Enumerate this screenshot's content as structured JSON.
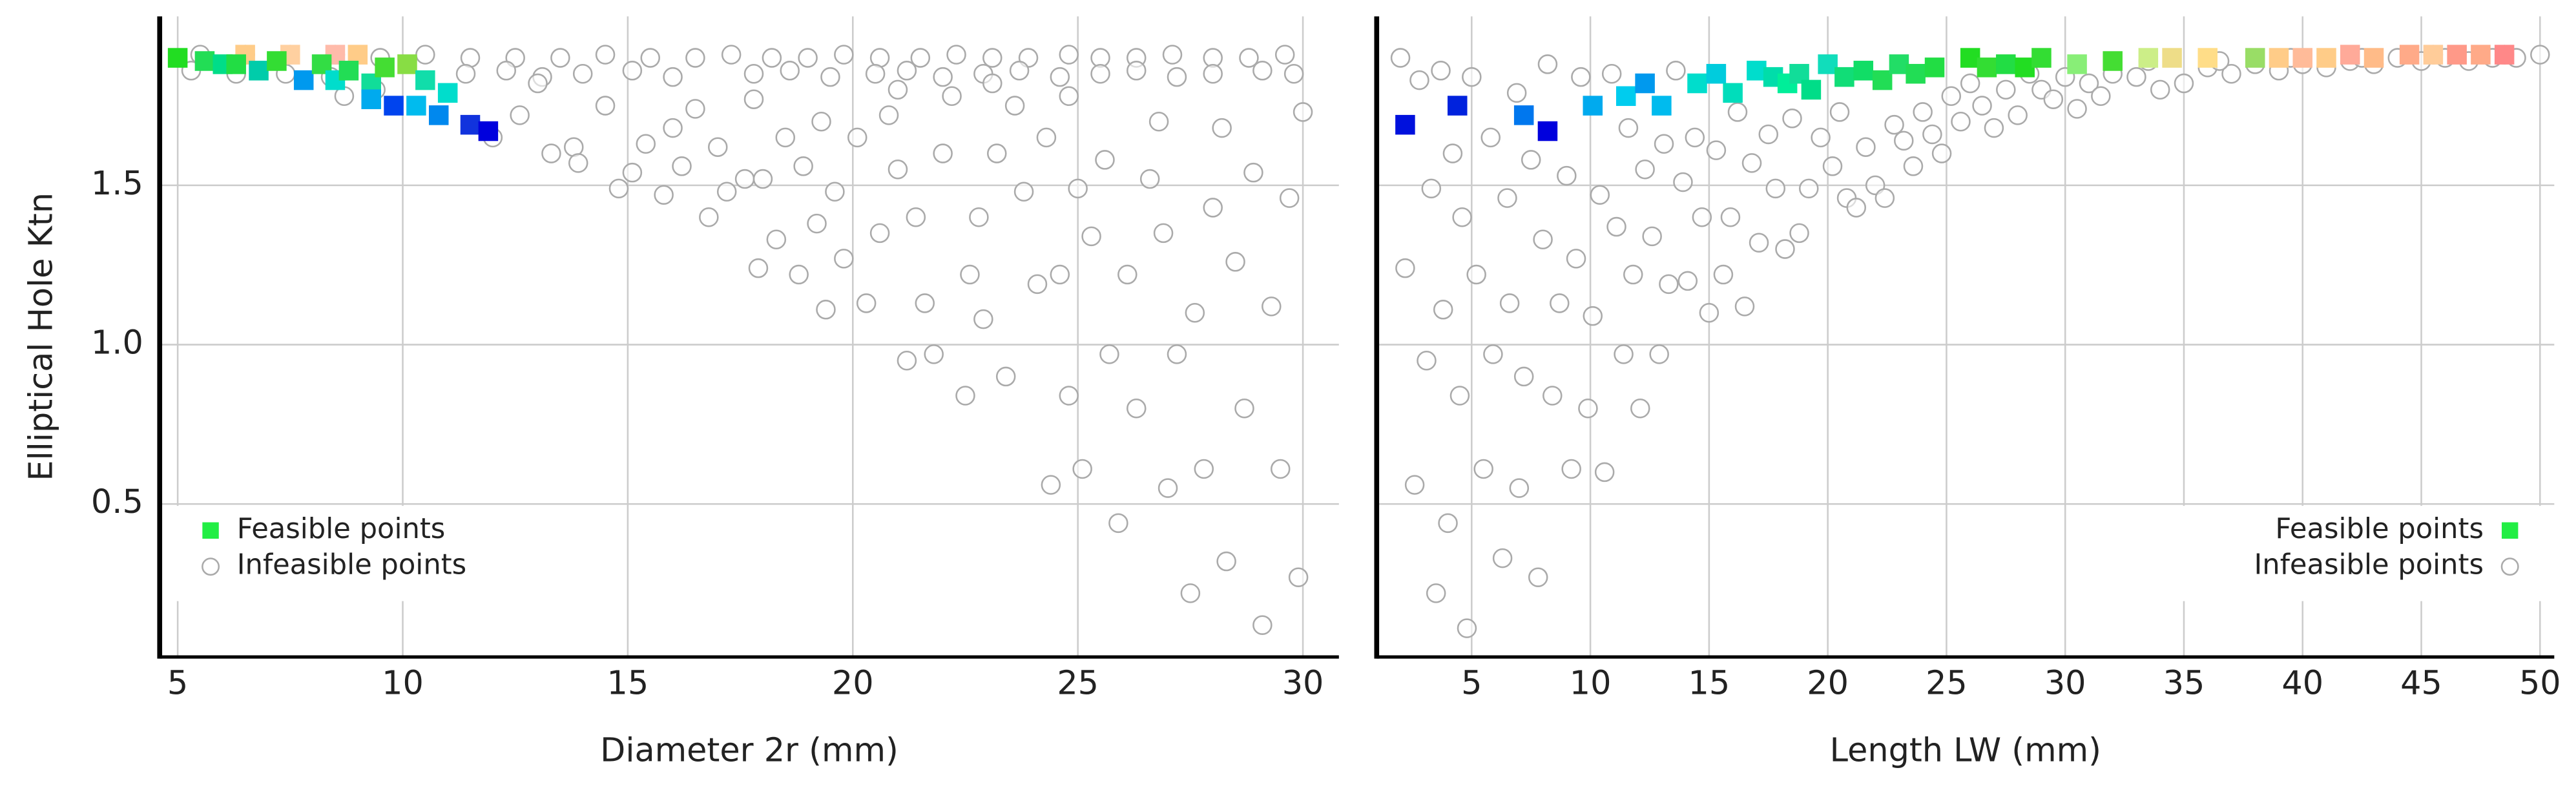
{
  "chart_data": [
    {
      "type": "scatter",
      "xlabel": "Diameter 2r (mm)",
      "ylabel": "Elliptical Hole Ktn",
      "xlim": [
        4.6,
        30.8
      ],
      "ylim": [
        0.02,
        2.03
      ],
      "xticks": [
        5,
        10,
        15,
        20,
        25,
        30
      ],
      "yticks": [
        0.5,
        {
          "value": 1,
          "label": "1.0"
        },
        1.5
      ],
      "grid": true,
      "legend": "lower left",
      "series": [
        {
          "name": "Feasible points",
          "color": "#22ee44",
          "marker": "square",
          "x": [
            6.5,
            7.5,
            8.5,
            9.0,
            5.0,
            5.6,
            6.0,
            6.3,
            6.8,
            7.2,
            7.8,
            8.2,
            8.5,
            8.8,
            9.3,
            9.6,
            9.3,
            9.8,
            10.1,
            10.3,
            10.5,
            10.8,
            11.0,
            11.5,
            11.9
          ],
          "values": [
            1.91,
            1.91,
            1.91,
            1.91,
            1.9,
            1.89,
            1.88,
            1.88,
            1.86,
            1.89,
            1.83,
            1.88,
            1.83,
            1.86,
            1.82,
            1.87,
            1.77,
            1.75,
            1.88,
            1.75,
            1.83,
            1.72,
            1.79,
            1.69,
            1.67
          ],
          "colors": [
            "#ffcc88",
            "#ffd0a0",
            "#ffbbaa",
            "#ffcc88",
            "#22dd22",
            "#22dd55",
            "#00dd88",
            "#22dd44",
            "#00ccaa",
            "#33dd33",
            "#0099ee",
            "#33dd44",
            "#00ddcc",
            "#22dd55",
            "#11dd99",
            "#44dd33",
            "#00aaee",
            "#0044ee",
            "#88dd44",
            "#00bbee",
            "#11ddaa",
            "#0088ee",
            "#00ddcc",
            "#1133dd",
            "#0000dd"
          ]
        },
        {
          "name": "Infeasible points",
          "color": "#aaaaaa",
          "marker": "circle",
          "x": [
            5.5,
            6.5,
            7.5,
            8.5,
            9.5,
            10.5,
            11.5,
            12.5,
            13.5,
            14.5,
            15.5,
            16.5,
            17.3,
            18.2,
            19,
            19.8,
            20.6,
            21.5,
            22.3,
            23.1,
            23.9,
            24.8,
            25.5,
            26.3,
            27.1,
            28,
            28.8,
            29.6,
            5.3,
            6.3,
            7.4,
            8.4,
            11.4,
            12.3,
            13.1,
            14.0,
            15.1,
            16.0,
            17.8,
            18.6,
            19.5,
            20.5,
            21.2,
            22.0,
            22.9,
            23.7,
            24.6,
            25.5,
            26.3,
            27.2,
            28.0,
            29.1,
            29.8,
            8.7,
            9.4,
            12.0,
            12.6,
            13.0,
            13.3,
            13.8,
            13.9,
            14.5,
            14.8,
            15.1,
            15.4,
            15.8,
            16.0,
            16.2,
            16.5,
            16.8,
            17.0,
            17.2,
            17.6,
            17.8,
            17.9,
            18.0,
            18.3,
            18.5,
            18.8,
            18.9,
            19.2,
            19.3,
            19.4,
            19.6,
            19.8,
            20.1,
            20.3,
            20.6,
            20.8,
            21.0,
            21.2,
            21.4,
            21.6,
            21.8,
            22.0,
            22.2,
            22.5,
            22.6,
            22.8,
            22.9,
            23.2,
            23.4,
            23.6,
            23.8,
            24.1,
            24.3,
            24.4,
            24.6,
            24.8,
            25.0,
            25.1,
            25.3,
            25.6,
            25.7,
            25.9,
            26.1,
            26.3,
            26.6,
            26.9,
            27.0,
            27.2,
            27.5,
            27.6,
            27.8,
            28.0,
            28.3,
            28.5,
            28.7,
            28.9,
            29.1,
            29.3,
            29.5,
            29.7,
            29.9,
            30.0,
            28.2,
            26.8,
            24.8,
            23.1,
            21.0
          ],
          "values": [
            1.91,
            1.91,
            1.91,
            1.91,
            1.9,
            1.91,
            1.9,
            1.9,
            1.9,
            1.91,
            1.9,
            1.9,
            1.91,
            1.9,
            1.9,
            1.91,
            1.9,
            1.9,
            1.91,
            1.9,
            1.9,
            1.91,
            1.9,
            1.9,
            1.91,
            1.9,
            1.9,
            1.91,
            1.86,
            1.85,
            1.85,
            1.84,
            1.85,
            1.86,
            1.84,
            1.85,
            1.86,
            1.84,
            1.85,
            1.86,
            1.84,
            1.85,
            1.86,
            1.84,
            1.85,
            1.86,
            1.84,
            1.85,
            1.86,
            1.84,
            1.85,
            1.86,
            1.85,
            1.78,
            1.8,
            1.65,
            1.72,
            1.82,
            1.6,
            1.62,
            1.57,
            1.75,
            1.49,
            1.54,
            1.63,
            1.47,
            1.68,
            1.56,
            1.74,
            1.4,
            1.62,
            1.48,
            1.52,
            1.77,
            1.24,
            1.52,
            1.33,
            1.65,
            1.22,
            1.56,
            1.38,
            1.7,
            1.11,
            1.48,
            1.27,
            1.65,
            1.13,
            1.35,
            1.72,
            1.55,
            0.95,
            1.4,
            1.13,
            0.97,
            1.6,
            1.78,
            0.84,
            1.22,
            1.4,
            1.08,
            1.6,
            0.9,
            1.75,
            1.48,
            1.19,
            1.65,
            0.56,
            1.22,
            0.84,
            1.49,
            0.61,
            1.34,
            1.58,
            0.97,
            0.44,
            1.22,
            0.8,
            1.52,
            1.35,
            0.55,
            0.97,
            0.22,
            1.1,
            0.61,
            1.43,
            0.32,
            1.26,
            0.8,
            1.54,
            0.12,
            1.12,
            0.61,
            1.46,
            0.27,
            1.73,
            1.68,
            1.7,
            1.78,
            1.82,
            1.8
          ]
        }
      ]
    },
    {
      "type": "scatter",
      "xlabel": "Length LW (mm)",
      "xlim": [
        1,
        50.6
      ],
      "ylim": [
        0.02,
        2.03
      ],
      "xticks": [
        5,
        10,
        15,
        20,
        25,
        30,
        35,
        40,
        45,
        50
      ],
      "yticks": [
        0.5,
        1,
        1.5
      ],
      "grid": true,
      "legend": "lower right",
      "series": [
        {
          "name": "Feasible points",
          "color": "#22ee44",
          "marker": "square",
          "x": [
            2.2,
            4.4,
            7.2,
            8.2,
            10.1,
            11.5,
            12.3,
            13.0,
            14.5,
            15.3,
            16.0,
            17.0,
            17.7,
            18.3,
            18.8,
            19.3,
            20.0,
            20.7,
            21.5,
            22.3,
            23.0,
            23.7,
            24.5,
            26.0,
            26.7,
            27.5,
            28.3,
            29.0,
            30.5,
            32.0,
            33.5,
            34.5,
            36,
            38,
            39,
            40,
            41,
            42,
            43,
            44.5,
            45.5,
            46.5,
            47.5,
            48.5
          ],
          "values": [
            1.69,
            1.75,
            1.72,
            1.67,
            1.75,
            1.78,
            1.82,
            1.75,
            1.82,
            1.85,
            1.79,
            1.86,
            1.84,
            1.82,
            1.85,
            1.8,
            1.88,
            1.84,
            1.86,
            1.83,
            1.88,
            1.85,
            1.87,
            1.9,
            1.87,
            1.88,
            1.87,
            1.9,
            1.88,
            1.89,
            1.9,
            1.9,
            1.9,
            1.9,
            1.9,
            1.9,
            1.9,
            1.91,
            1.9,
            1.91,
            1.91,
            1.91,
            1.91,
            1.91
          ],
          "colors": [
            "#0011dd",
            "#0022dd",
            "#0077ee",
            "#0000dd",
            "#00aaee",
            "#00ccee",
            "#0099ee",
            "#00bbee",
            "#00ddcc",
            "#00ccdd",
            "#00ddbb",
            "#00ddcc",
            "#00ddaa",
            "#00ee99",
            "#11dd99",
            "#00dd88",
            "#11ddbb",
            "#11dd77",
            "#11dd66",
            "#22dd55",
            "#22dd66",
            "#22dd55",
            "#22dd44",
            "#22dd22",
            "#33dd33",
            "#22dd44",
            "#22dd22",
            "#33dd33",
            "#88ee77",
            "#44dd33",
            "#ccee88",
            "#eedd88",
            "#ffdd88",
            "#99dd66",
            "#ffcc88",
            "#ffbb99",
            "#ffcc88",
            "#ffaa99",
            "#ffbb88",
            "#ffaa88",
            "#ffcc99",
            "#ff9988",
            "#ffaa88",
            "#ff8888"
          ]
        },
        {
          "name": "Infeasible points",
          "color": "#aaaaaa",
          "marker": "circle",
          "x": [
            2.0,
            2.2,
            2.6,
            2.8,
            3.1,
            3.3,
            3.5,
            3.7,
            3.8,
            4.0,
            4.2,
            4.6,
            4.5,
            4.8,
            5.0,
            5.2,
            5.5,
            5.8,
            5.9,
            6.3,
            6.5,
            6.6,
            6.9,
            7.0,
            7.2,
            7.5,
            7.8,
            8.0,
            8.2,
            8.4,
            8.7,
            9.0,
            9.2,
            9.4,
            9.6,
            9.9,
            10.1,
            10.4,
            10.6,
            10.9,
            11.1,
            11.4,
            11.6,
            11.8,
            12.1,
            12.3,
            12.6,
            12.9,
            13.1,
            13.3,
            13.6,
            13.9,
            14.1,
            14.4,
            14.7,
            15.0,
            15.3,
            15.6,
            15.9,
            16.2,
            16.5,
            16.8,
            17.1,
            17.5,
            17.8,
            18.2,
            18.5,
            18.8,
            19.2,
            19.7,
            20.2,
            20.5,
            20.8,
            21.2,
            21.6,
            22.0,
            22.4,
            22.8,
            23.2,
            23.6,
            24.0,
            24.4,
            24.8,
            25.2,
            25.6,
            26.0,
            26.5,
            27.0,
            27.5,
            28.0,
            28.5,
            29.0,
            29.5,
            30.0,
            30.5,
            31.0,
            31.5,
            32.0,
            33,
            34,
            35,
            36,
            37,
            38,
            39,
            40,
            41,
            42,
            43,
            44,
            45,
            46,
            47,
            48,
            49,
            50,
            33.5,
            36.5,
            39.5,
            42.5,
            45.5,
            48.5
          ],
          "values": [
            1.9,
            1.24,
            0.56,
            1.83,
            0.95,
            1.49,
            0.22,
            1.86,
            1.11,
            0.44,
            1.6,
            1.4,
            0.84,
            0.11,
            1.84,
            1.22,
            0.61,
            1.65,
            0.97,
            0.33,
            1.46,
            1.13,
            1.79,
            0.55,
            0.9,
            1.58,
            0.27,
            1.33,
            1.88,
            0.84,
            1.13,
            1.53,
            0.61,
            1.27,
            1.84,
            0.8,
            1.09,
            1.47,
            0.6,
            1.85,
            1.37,
            0.97,
            1.68,
            1.22,
            0.8,
            1.55,
            1.34,
            0.97,
            1.63,
            1.19,
            1.86,
            1.51,
            1.2,
            1.65,
            1.4,
            1.1,
            1.61,
            1.22,
            1.4,
            1.73,
            1.12,
            1.57,
            1.32,
            1.66,
            1.49,
            1.3,
            1.71,
            1.35,
            1.49,
            1.65,
            1.56,
            1.73,
            1.46,
            1.43,
            1.62,
            1.5,
            1.46,
            1.69,
            1.64,
            1.56,
            1.73,
            1.66,
            1.6,
            1.78,
            1.7,
            1.82,
            1.75,
            1.68,
            1.8,
            1.72,
            1.85,
            1.8,
            1.77,
            1.84,
            1.74,
            1.82,
            1.78,
            1.85,
            1.84,
            1.8,
            1.82,
            1.87,
            1.85,
            1.88,
            1.86,
            1.88,
            1.87,
            1.89,
            1.88,
            1.9,
            1.89,
            1.9,
            1.89,
            1.9,
            1.9,
            1.91,
            1.89,
            1.89,
            1.9,
            1.9,
            1.91,
            1.91
          ]
        }
      ]
    }
  ]
}
